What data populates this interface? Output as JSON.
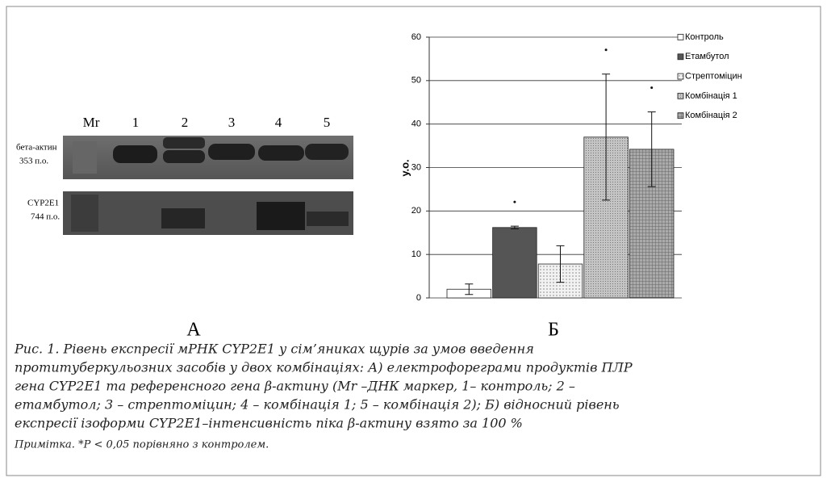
{
  "panel_a": {
    "lane_labels": [
      "Mr",
      "1",
      "2",
      "3",
      "4",
      "5"
    ],
    "row_labels": [
      [
        "бета-актин",
        "353 п.о."
      ],
      [
        "CYP2E1",
        "744 п.о."
      ]
    ],
    "label": "А"
  },
  "chart_data": {
    "type": "bar",
    "label": "Б",
    "ylabel": "у.о.",
    "ylim": [
      0,
      60
    ],
    "yticks": [
      0,
      10,
      20,
      30,
      40,
      50,
      60
    ],
    "grid": true,
    "legend": "top-right",
    "series": [
      {
        "name": "Контроль",
        "color": "#ffffff",
        "values": [
          2
        ],
        "errors": [
          1.2
        ],
        "significant": false
      },
      {
        "name": "Етамбутол",
        "color": "#555555",
        "values": [
          16.2
        ],
        "errors": [
          0.3
        ],
        "significant": true
      },
      {
        "name": "Стрептоміцин",
        "color": "#e4e4e4",
        "values": [
          7.8
        ],
        "errors": [
          4.2
        ],
        "significant": false
      },
      {
        "name": "Комбінація 1",
        "color": "#b8b8b8",
        "values": [
          37
        ],
        "errors": [
          14.5
        ],
        "significant": true
      },
      {
        "name": "Комбінація 2",
        "color": "#9a9a9a",
        "values": [
          34.2
        ],
        "errors": [
          8.6
        ],
        "significant": true
      }
    ]
  },
  "caption": {
    "lines": [
      "Рис. 1. Рівень експресії мРНК CYP2E1 у сім’яниках щурів за умов введення",
      "протитуберкульозних засобів у двох комбінаціях: А) електрофореграми продуктів ПЛР",
      "гена CYP2E1 та референсного гена β-актину (Mr –ДНК маркер, 1– контроль; 2 –",
      "етамбутол; 3 – стрептоміцин; 4 – комбінація 1; 5 – комбінація 2); Б) відносний  рівень",
      "експресії ізоформи CYP2E1–інтенсивність піка β-актину взято за 100 %"
    ],
    "note": "Примітка. *P < 0,05 порівняно з контролем."
  }
}
